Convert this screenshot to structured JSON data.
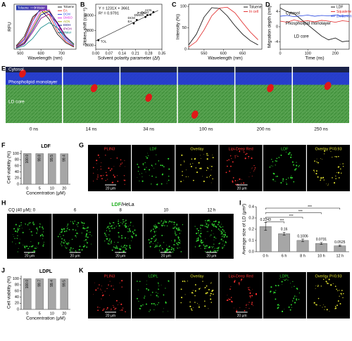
{
  "panel_letters": [
    "A",
    "B",
    "C",
    "D",
    "E",
    "F",
    "G",
    "H",
    "I",
    "J",
    "K"
  ],
  "chart_data": [
    {
      "type": "line",
      "xlabel": "Wavelength (nm)",
      "ylabel": "RFU",
      "x": [
        480,
        520,
        560,
        600,
        640,
        680,
        720,
        760
      ],
      "series": [
        {
          "name": "Toluene",
          "color": "#000000",
          "values": [
            0.08,
            0.3,
            0.75,
            0.92,
            0.7,
            0.35,
            0.15,
            0.05
          ]
        },
        {
          "name": "EA",
          "color": "#e02020",
          "values": [
            0.06,
            0.25,
            0.7,
            0.95,
            0.8,
            0.42,
            0.18,
            0.06
          ]
        },
        {
          "name": "DCM",
          "color": "#2040e0",
          "values": [
            0.05,
            0.22,
            0.65,
            0.97,
            0.88,
            0.5,
            0.22,
            0.08
          ]
        },
        {
          "name": "DMSO",
          "color": "#e020e0",
          "values": [
            0.04,
            0.18,
            0.55,
            0.9,
            0.92,
            0.58,
            0.26,
            0.1
          ]
        },
        {
          "name": "ACN",
          "color": "#a0a000",
          "values": [
            0.04,
            0.16,
            0.5,
            0.85,
            0.9,
            0.6,
            0.28,
            0.1
          ]
        },
        {
          "name": "EtOH",
          "color": "#000080",
          "values": [
            0.03,
            0.14,
            0.45,
            0.8,
            0.88,
            0.62,
            0.3,
            0.12
          ]
        },
        {
          "name": "iPrOH",
          "color": "#800080",
          "values": [
            0.03,
            0.12,
            0.4,
            0.72,
            0.82,
            0.6,
            0.3,
            0.12
          ]
        },
        {
          "name": "Water",
          "color": "#008080",
          "values": [
            0.02,
            0.08,
            0.25,
            0.5,
            0.62,
            0.5,
            0.28,
            0.12
          ]
        }
      ],
      "xlim": [
        470,
        770
      ],
      "xticks": [
        500,
        600,
        700
      ],
      "ylim": [
        0,
        1.05
      ],
      "legend": "upper right",
      "annotations": [
        "Toluene",
        "Water"
      ]
    },
    {
      "type": "scatter",
      "xlabel": "Solvent polarity parameter (Δf)",
      "ylabel": "Stokes shift (cm⁻¹)",
      "x": [
        0.014,
        0.201,
        0.217,
        0.263,
        0.273,
        0.289,
        0.305
      ],
      "values": [
        3670,
        3895,
        3940,
        3980,
        4005,
        4010,
        4045
      ],
      "point_labels": [
        "TOL",
        "EA",
        "DCM",
        "DMSO",
        "iPrOH",
        "EtOH",
        "ACN"
      ],
      "color": "#000000",
      "fit": {
        "x": [
          0,
          0.33
        ],
        "values": [
          3661,
          4067
        ]
      },
      "xlim": [
        0,
        0.35
      ],
      "xticks": [
        {
          "value": 0,
          "label": "0.00"
        },
        0.07,
        0.14,
        0.21,
        0.28,
        0.35
      ],
      "ylim": [
        3550,
        4150
      ],
      "yticks": [
        3600,
        3800,
        4000
      ],
      "annotations": [
        "Y = 1231X + 3661",
        "R² = 0.9791"
      ]
    },
    {
      "type": "line",
      "xlabel": "Wavelength (nm)",
      "ylabel": "Intensity (%)",
      "x": [
        510,
        530,
        550,
        570,
        590,
        610,
        630,
        650,
        670,
        690
      ],
      "series": [
        {
          "name": "Toluene",
          "color": "#000000",
          "values": [
            10,
            35,
            75,
            97,
            95,
            78,
            55,
            35,
            20,
            10
          ]
        },
        {
          "name": "In cell",
          "color": "#e02020",
          "values": [
            5,
            18,
            45,
            78,
            96,
            98,
            85,
            62,
            40,
            22
          ]
        }
      ],
      "xlim": [
        510,
        700
      ],
      "xticks": [
        550,
        600,
        650
      ],
      "ylim": [
        0,
        105
      ],
      "yticks": [
        0,
        50,
        100
      ],
      "legend": "upper right"
    },
    {
      "type": "line",
      "xlabel": "Time (ns)",
      "ylabel": "Migration depth (nm)",
      "x": [
        0,
        25,
        50,
        75,
        100,
        125,
        150,
        175,
        200,
        225,
        250
      ],
      "series": [
        {
          "name": "LDF",
          "color": "#000000",
          "values": [
            5,
            4,
            3.5,
            2,
            0.5,
            -1,
            -2.5,
            -3.5,
            -3,
            -4,
            -3.8
          ]
        },
        {
          "name": "Squalene",
          "color": "#e02020",
          "values": [
            1.5,
            1.2,
            1.8,
            1.4,
            1.6,
            1.3,
            1.7,
            1.5,
            1.2,
            1.6,
            1.4
          ]
        },
        {
          "name": "Zwitterion",
          "color": "#2040e0",
          "values": [
            2.8,
            3,
            2.7,
            2.9,
            3.1,
            2.8,
            3,
            2.9,
            3.1,
            2.8,
            3
          ]
        }
      ],
      "xlim": [
        0,
        250
      ],
      "xticks": [
        0,
        100,
        200
      ],
      "ylim": [
        -6,
        6
      ],
      "yticks": [
        -4,
        0,
        4
      ],
      "legend": "upper right",
      "annotations": [
        "Cytosol",
        "Phospholipid monolayer",
        "LD core"
      ]
    },
    {
      "type": "bar",
      "title": "LDF",
      "xlabel": "Concentration (μM)",
      "ylabel": "Cell viability (%)",
      "categories": [
        "0",
        "5",
        "10",
        "20"
      ],
      "values": [
        100,
        99.8,
        99.5,
        99.4
      ],
      "value_labels": [
        "100.0",
        "99.8",
        "99.5",
        "99.4"
      ],
      "color": "#a6a6a6",
      "ylim": [
        0,
        110
      ],
      "yticks": [
        0,
        20,
        40,
        60,
        80,
        100
      ]
    },
    {
      "type": "bar",
      "ylabel": "Average size of LD (μm²)",
      "categories": [
        "0 h",
        "6 h",
        "8 h",
        "10 h",
        "12 h"
      ],
      "values": [
        0.2243,
        0.16,
        0.1006,
        0.0731,
        0.0525
      ],
      "errors": [
        0.035,
        0.013,
        0.012,
        0.009,
        0.007
      ],
      "color": "#a6a6a6",
      "ylim": [
        0,
        0.4
      ],
      "yticks": [
        {
          "value": 0,
          "label": "0.0"
        },
        0.1,
        0.2,
        0.3,
        0.4
      ],
      "annotations": [
        "***",
        "***",
        "***",
        "***"
      ]
    },
    {
      "type": "bar",
      "title": "LDPL",
      "xlabel": "Concentration (μM)",
      "ylabel": "Cell viability (%)",
      "categories": [
        "0",
        "5",
        "10",
        "20"
      ],
      "values": [
        100,
        99.7,
        99.4,
        99.5
      ],
      "value_labels": [
        "100.0",
        "99.7",
        "99.4",
        "99.5"
      ],
      "color": "#a6a6a6",
      "ylim": [
        0,
        110
      ],
      "yticks": [
        0,
        20,
        40,
        60,
        80,
        100
      ]
    }
  ],
  "panel_E": {
    "labels": [
      "Cytosol",
      "Phospholipid monolayer",
      "LD core"
    ],
    "times": [
      "0 ns",
      "14 ns",
      "34 ns",
      "100 ns",
      "200 ns",
      "250 ns"
    ]
  },
  "panel_G": {
    "channels": [
      "PLIN3",
      "LDF",
      "Overlay",
      "Lipi-Deep Red",
      "LDF",
      "Overlay P=0.93"
    ],
    "scale_bars": [
      "20 μm",
      "20 μm"
    ]
  },
  "panel_H": {
    "title_dye": "LDF",
    "title_cell": "/HeLa",
    "condition": "CQ (40 μM): 0",
    "times": [
      "6",
      "8",
      "10",
      "12 h"
    ],
    "scale_bars": [
      "20 μm",
      "20 μm",
      "20 μm",
      "20 μm",
      "20 μm"
    ]
  },
  "panel_K": {
    "channels": [
      "PLIN3",
      "LDPL",
      "Overlay",
      "Lipi-Deep Red",
      "LDPL",
      "Overlay P=0.93"
    ],
    "scale_bars": [
      "20 μm",
      "20 μm"
    ]
  }
}
